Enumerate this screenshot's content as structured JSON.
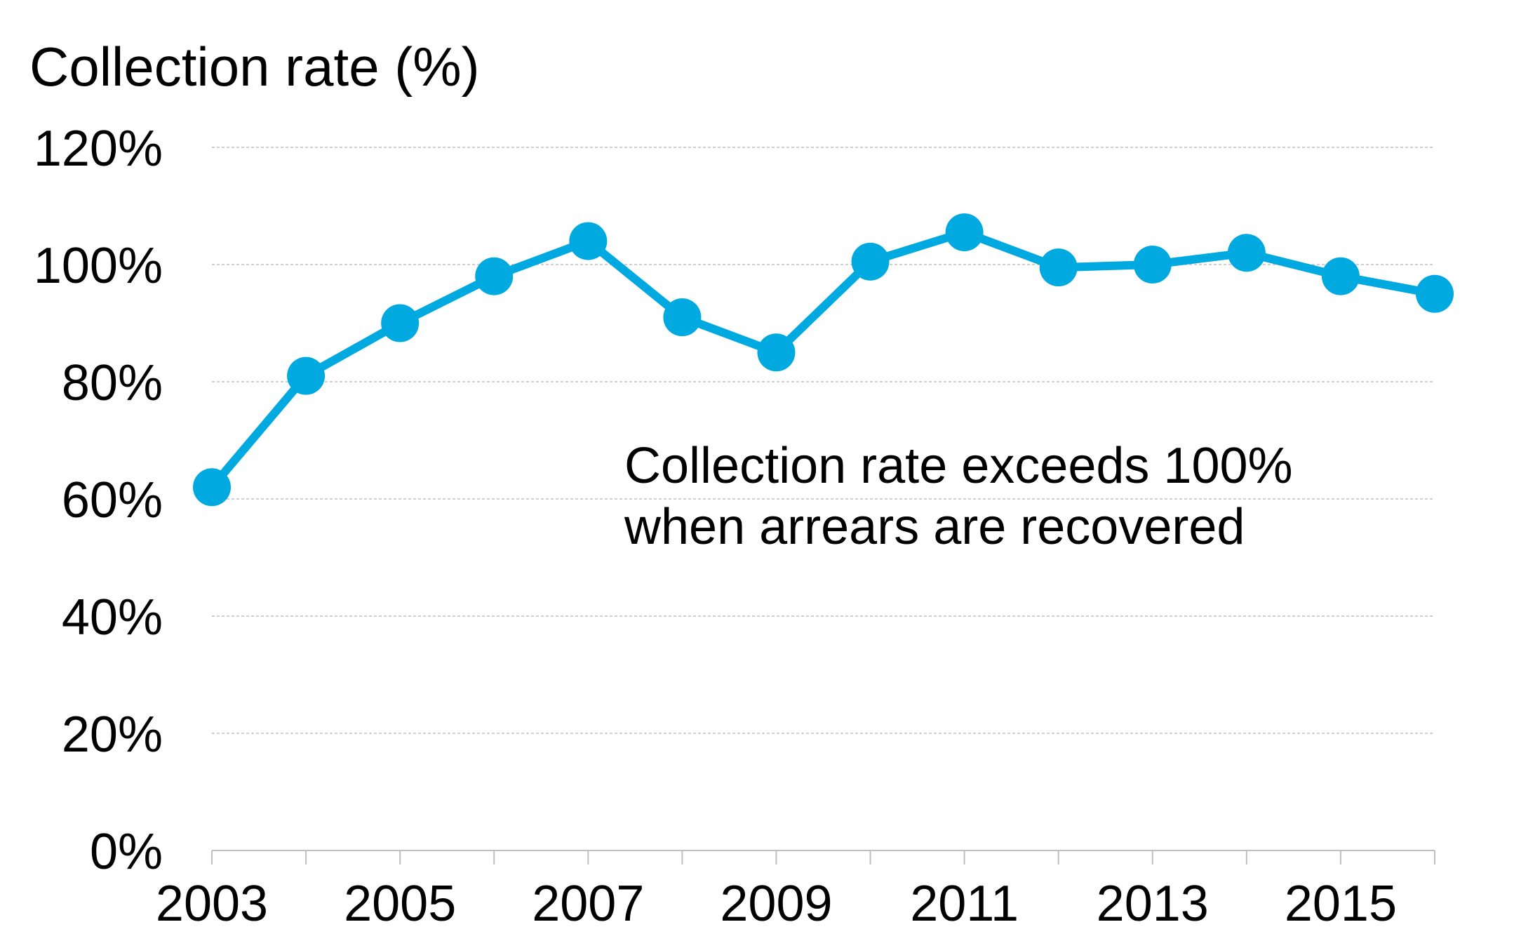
{
  "colors": {
    "series": "#00a9e0",
    "grid": "#bfbfbf",
    "text": "#000000"
  },
  "chart_data": {
    "type": "line",
    "ylabel": "Collection rate (%)",
    "xlabel": "",
    "x": [
      2003,
      2004,
      2005,
      2006,
      2007,
      2008,
      2009,
      2010,
      2011,
      2012,
      2013,
      2014,
      2015,
      2016
    ],
    "series": [
      {
        "values": [
          62,
          81,
          90,
          98,
          104,
          91,
          85,
          100.5,
          105.5,
          99.5,
          100,
          102,
          98,
          95
        ]
      }
    ],
    "ylim": [
      0,
      120
    ],
    "yticks": [
      0,
      20,
      40,
      60,
      80,
      100,
      120
    ],
    "ytick_labels": [
      "0%",
      "20%",
      "40%",
      "60%",
      "80%",
      "100%",
      "120%"
    ],
    "xtick_labels": [
      "2003",
      "2005",
      "2007",
      "2009",
      "2011",
      "2013",
      "2015"
    ],
    "xtick_label_years": [
      2003,
      2005,
      2007,
      2009,
      2011,
      2013,
      2015
    ],
    "grid": true,
    "legend": "none",
    "annotation": [
      "Collection rate exceeds 100%",
      "when arrears are recovered"
    ]
  }
}
